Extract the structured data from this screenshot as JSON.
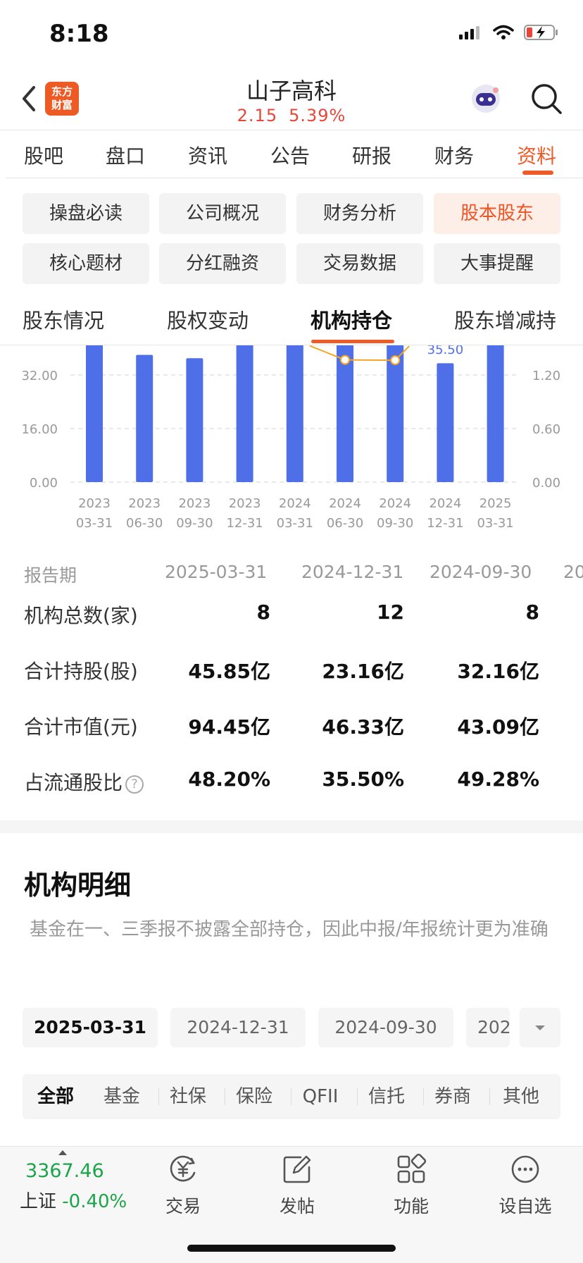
{
  "status": {
    "time": "8:18"
  },
  "header": {
    "logo_text_1": "东方",
    "logo_text_2": "财富",
    "title": "山子高科",
    "price": "2.15",
    "change_pct": "5.39%"
  },
  "main_tabs": [
    "股吧",
    "盘口",
    "资讯",
    "公告",
    "研报",
    "财务",
    "资料"
  ],
  "sub_tabs": [
    "操盘必读",
    "公司概况",
    "财务分析",
    "股本股东",
    "核心题材",
    "分红融资",
    "交易数据",
    "大事提醒"
  ],
  "section_tabs": [
    "股东情况",
    "股权变动",
    "机构持仓",
    "股东增减持"
  ],
  "chart_data": {
    "type": "bar",
    "categories": [
      "2023\n03-31",
      "2023\n06-30",
      "2023\n09-30",
      "2023\n12-31",
      "2024\n03-31",
      "2024\n06-30",
      "2024\n09-30",
      "2024\n12-31",
      "2025\n03-31"
    ],
    "x_tick_years": [
      "2023",
      "2023",
      "2023",
      "2023",
      "2024",
      "2024",
      "2024",
      "2024",
      "2025"
    ],
    "x_tick_dates": [
      "03-31",
      "06-30",
      "09-30",
      "12-31",
      "03-31",
      "06-30",
      "09-30",
      "12-31",
      "03-31"
    ],
    "left_ticks": [
      "32.00",
      "16.00",
      "0.00"
    ],
    "right_ticks": [
      "1.20",
      "0.60",
      "0.00"
    ],
    "ylim_visible": [
      0,
      37
    ],
    "series": [
      {
        "type": "bar",
        "color": "#4e6fe8",
        "values": [
          48,
          38,
          37,
          48,
          48,
          45,
          49.28,
          35.5,
          48.2
        ]
      },
      {
        "type": "line",
        "color": "#f5a623",
        "values": [
          null,
          null,
          null,
          null,
          null,
          36.5,
          36.4,
          null,
          null
        ]
      }
    ],
    "visible_label": "35.50"
  },
  "table": {
    "header_label": "报告期",
    "dates": [
      "2025-03-31",
      "2024-12-31",
      "2024-09-30",
      "20"
    ],
    "rows": [
      {
        "label": "机构总数(家)",
        "values": [
          "8",
          "12",
          "8"
        ]
      },
      {
        "label": "合计持股(股)",
        "values": [
          "45.85亿",
          "23.16亿",
          "32.16亿"
        ]
      },
      {
        "label": "合计市值(元)",
        "values": [
          "94.45亿",
          "46.33亿",
          "43.09亿"
        ]
      },
      {
        "label": "占流通股比",
        "values": [
          "48.20%",
          "35.50%",
          "49.28%"
        ]
      }
    ],
    "help_icon": "?"
  },
  "detail": {
    "title": "机构明细",
    "note": "基金在一、三季报不披露全部持仓，因此中报/年报统计更为准确",
    "dates": [
      "2025-03-31",
      "2024-12-31",
      "2024-09-30",
      "202"
    ],
    "categories": [
      "全部",
      "基金",
      "社保",
      "保险",
      "QFII",
      "信托",
      "券商",
      "其他"
    ]
  },
  "bottom": {
    "index_value": "3367.46",
    "index_name": "上证",
    "index_change": "-0.40%",
    "nav": [
      "交易",
      "发帖",
      "功能",
      "设自选"
    ]
  }
}
